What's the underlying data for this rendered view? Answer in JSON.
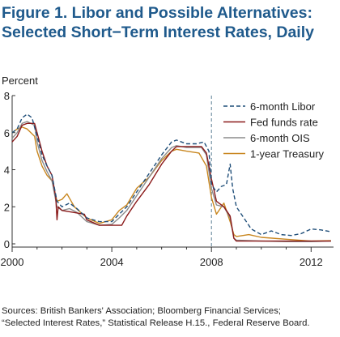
{
  "header": {
    "title_line1": "Figure 1. Libor and Possible Alternatives:",
    "title_line2": "Selected Short−Term Interest Rates, Daily"
  },
  "footer": {
    "source_line1": "Sources: British Bankers' Association; Bloomberg Financial Services;",
    "source_line2": "“Selected Interest Rates,” Statistical Release H.15., Federal Reserve Board."
  },
  "chart_data": {
    "type": "line",
    "title": "Figure 1. Libor and Possible Alternatives: Selected Short−Term Interest Rates, Daily",
    "xlabel": "",
    "ylabel": "Percent",
    "xlim": [
      2000,
      2012.9
    ],
    "ylim": [
      0,
      8
    ],
    "x_ticks": [
      2000,
      2004,
      2008,
      2012
    ],
    "y_ticks": [
      0,
      2,
      4,
      6,
      8
    ],
    "reference_line": {
      "x": 2008.0,
      "style": "dashed"
    },
    "legend_position": "top-right",
    "series": [
      {
        "name": "6-month Libor",
        "color": "#1f4e79",
        "style": "dashed",
        "points": [
          [
            2000.0,
            6.0
          ],
          [
            2000.2,
            6.2
          ],
          [
            2000.4,
            6.8
          ],
          [
            2000.6,
            7.0
          ],
          [
            2000.8,
            6.8
          ],
          [
            2001.0,
            5.8
          ],
          [
            2001.2,
            4.8
          ],
          [
            2001.4,
            4.2
          ],
          [
            2001.6,
            3.7
          ],
          [
            2001.8,
            2.3
          ],
          [
            2002.0,
            2.0
          ],
          [
            2002.3,
            2.2
          ],
          [
            2002.6,
            1.9
          ],
          [
            2003.0,
            1.4
          ],
          [
            2003.5,
            1.2
          ],
          [
            2004.0,
            1.2
          ],
          [
            2004.3,
            1.6
          ],
          [
            2004.6,
            2.0
          ],
          [
            2005.0,
            2.8
          ],
          [
            2005.5,
            3.8
          ],
          [
            2006.0,
            4.8
          ],
          [
            2006.4,
            5.5
          ],
          [
            2006.6,
            5.6
          ],
          [
            2007.0,
            5.4
          ],
          [
            2007.4,
            5.4
          ],
          [
            2007.7,
            5.5
          ],
          [
            2007.9,
            5.0
          ],
          [
            2008.0,
            3.2
          ],
          [
            2008.2,
            2.8
          ],
          [
            2008.4,
            3.1
          ],
          [
            2008.6,
            3.2
          ],
          [
            2008.75,
            4.3
          ],
          [
            2008.85,
            3.0
          ],
          [
            2009.0,
            2.0
          ],
          [
            2009.3,
            1.4
          ],
          [
            2009.6,
            0.8
          ],
          [
            2010.0,
            0.5
          ],
          [
            2010.4,
            0.7
          ],
          [
            2010.8,
            0.5
          ],
          [
            2011.2,
            0.45
          ],
          [
            2011.6,
            0.55
          ],
          [
            2012.0,
            0.8
          ],
          [
            2012.4,
            0.75
          ],
          [
            2012.8,
            0.65
          ]
        ]
      },
      {
        "name": "Fed funds rate",
        "color": "#8b1a1a",
        "style": "solid",
        "points": [
          [
            2000.0,
            5.5
          ],
          [
            2000.2,
            5.8
          ],
          [
            2000.4,
            6.4
          ],
          [
            2000.6,
            6.5
          ],
          [
            2000.9,
            6.5
          ],
          [
            2001.0,
            6.0
          ],
          [
            2001.2,
            5.0
          ],
          [
            2001.4,
            4.2
          ],
          [
            2001.6,
            3.7
          ],
          [
            2001.75,
            2.5
          ],
          [
            2001.8,
            1.3
          ],
          [
            2001.85,
            2.0
          ],
          [
            2002.0,
            1.8
          ],
          [
            2002.9,
            1.6
          ],
          [
            2003.0,
            1.3
          ],
          [
            2003.5,
            1.0
          ],
          [
            2004.4,
            1.0
          ],
          [
            2004.6,
            1.5
          ],
          [
            2005.0,
            2.3
          ],
          [
            2005.5,
            3.2
          ],
          [
            2006.0,
            4.3
          ],
          [
            2006.4,
            5.0
          ],
          [
            2006.6,
            5.25
          ],
          [
            2007.6,
            5.25
          ],
          [
            2007.8,
            4.9
          ],
          [
            2008.0,
            3.5
          ],
          [
            2008.2,
            2.3
          ],
          [
            2008.5,
            2.0
          ],
          [
            2008.75,
            1.5
          ],
          [
            2008.9,
            0.3
          ],
          [
            2009.0,
            0.15
          ],
          [
            2012.8,
            0.15
          ]
        ]
      },
      {
        "name": "6-month OIS",
        "color": "#8c8c8c",
        "style": "solid",
        "points": [
          [
            2000.0,
            5.7
          ],
          [
            2000.2,
            6.0
          ],
          [
            2000.4,
            6.5
          ],
          [
            2000.6,
            6.6
          ],
          [
            2000.9,
            6.4
          ],
          [
            2001.0,
            5.5
          ],
          [
            2001.2,
            4.5
          ],
          [
            2001.4,
            3.9
          ],
          [
            2001.6,
            3.4
          ],
          [
            2001.8,
            2.0
          ],
          [
            2002.0,
            1.8
          ],
          [
            2002.3,
            1.9
          ],
          [
            2002.6,
            1.7
          ],
          [
            2003.0,
            1.2
          ],
          [
            2003.5,
            1.0
          ],
          [
            2004.0,
            1.05
          ],
          [
            2004.3,
            1.4
          ],
          [
            2004.6,
            1.8
          ],
          [
            2005.0,
            2.6
          ],
          [
            2005.5,
            3.6
          ],
          [
            2006.0,
            4.6
          ],
          [
            2006.4,
            5.2
          ],
          [
            2006.6,
            5.3
          ],
          [
            2007.0,
            5.2
          ],
          [
            2007.6,
            5.2
          ],
          [
            2007.8,
            4.8
          ],
          [
            2008.0,
            3.0
          ],
          [
            2008.2,
            2.1
          ],
          [
            2008.5,
            2.0
          ],
          [
            2008.75,
            1.4
          ],
          [
            2008.9,
            0.3
          ],
          [
            2009.0,
            0.2
          ],
          [
            2010.0,
            0.15
          ],
          [
            2011.0,
            0.12
          ],
          [
            2012.0,
            0.12
          ],
          [
            2012.8,
            0.15
          ]
        ]
      },
      {
        "name": "1-year Treasury",
        "color": "#c8861f",
        "style": "solid",
        "points": [
          [
            2000.0,
            6.0
          ],
          [
            2000.2,
            6.2
          ],
          [
            2000.4,
            6.3
          ],
          [
            2000.6,
            6.2
          ],
          [
            2000.9,
            5.8
          ],
          [
            2001.0,
            5.0
          ],
          [
            2001.2,
            4.2
          ],
          [
            2001.4,
            3.7
          ],
          [
            2001.6,
            3.4
          ],
          [
            2001.8,
            2.3
          ],
          [
            2002.0,
            2.4
          ],
          [
            2002.2,
            2.7
          ],
          [
            2002.5,
            2.0
          ],
          [
            2003.0,
            1.4
          ],
          [
            2003.5,
            1.1
          ],
          [
            2004.0,
            1.3
          ],
          [
            2004.3,
            1.8
          ],
          [
            2004.6,
            2.1
          ],
          [
            2005.0,
            3.0
          ],
          [
            2005.5,
            3.6
          ],
          [
            2006.0,
            4.5
          ],
          [
            2006.4,
            5.0
          ],
          [
            2006.6,
            5.1
          ],
          [
            2007.0,
            5.0
          ],
          [
            2007.5,
            4.9
          ],
          [
            2007.8,
            4.2
          ],
          [
            2008.0,
            2.5
          ],
          [
            2008.2,
            1.6
          ],
          [
            2008.5,
            2.2
          ],
          [
            2008.75,
            1.2
          ],
          [
            2008.9,
            0.5
          ],
          [
            2009.0,
            0.4
          ],
          [
            2009.5,
            0.5
          ],
          [
            2010.0,
            0.35
          ],
          [
            2011.0,
            0.25
          ],
          [
            2012.0,
            0.15
          ],
          [
            2012.8,
            0.17
          ]
        ]
      }
    ]
  }
}
